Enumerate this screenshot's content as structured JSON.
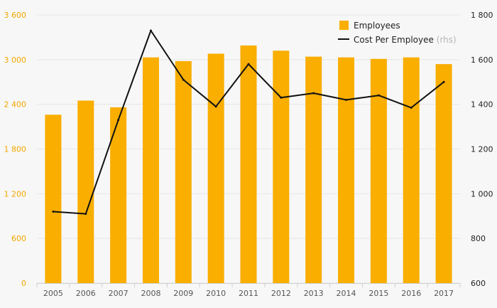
{
  "chart_data": {
    "type": "bar",
    "categories": [
      "2005",
      "2006",
      "2007",
      "2008",
      "2009",
      "2010",
      "2011",
      "2012",
      "2013",
      "2014",
      "2015",
      "2016",
      "2017"
    ],
    "series": [
      {
        "name": "Employees",
        "type": "bar",
        "axis": "left",
        "color": "#f9ae00",
        "values": [
          2260,
          2450,
          2360,
          3030,
          2980,
          3080,
          3190,
          3120,
          3040,
          3030,
          3010,
          3030,
          2940
        ]
      },
      {
        "name": "Cost Per Employee",
        "type": "line",
        "axis": "right",
        "color": "#111111",
        "values": [
          920,
          910,
          1330,
          1730,
          1510,
          1390,
          1580,
          1430,
          1450,
          1420,
          1440,
          1385,
          1500
        ]
      }
    ],
    "left_axis": {
      "min": 0,
      "max": 3600,
      "ticks": [
        0,
        600,
        1200,
        1800,
        2400,
        3000,
        3600
      ],
      "tick_labels": [
        "0",
        "600",
        "1 200",
        "1 800",
        "2 400",
        "3 000",
        "3 600"
      ]
    },
    "right_axis": {
      "min": 600,
      "max": 1800,
      "ticks": [
        600,
        800,
        1000,
        1200,
        1400,
        1600,
        1800
      ],
      "tick_labels": [
        "600",
        "800",
        "1 000",
        "1 200",
        "1 400",
        "1 600",
        "1 800"
      ]
    },
    "legend": {
      "position": "top-right",
      "employees_label": "Employees",
      "cost_label": "Cost Per Employee",
      "cost_note": "(rhs)"
    },
    "grid": true
  }
}
